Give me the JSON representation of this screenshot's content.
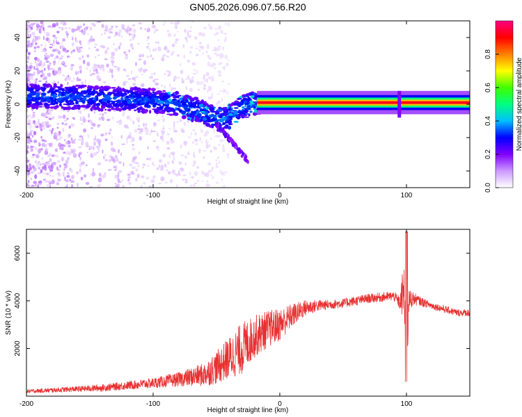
{
  "title": "GN05.2026.096.07.56.R20",
  "colorbar": {
    "label": "Normalized spectral amplitude",
    "ticks": [
      "0.0",
      "0.2",
      "0.4",
      "0.6",
      "0.8"
    ],
    "tick_values": [
      0.0,
      0.2,
      0.4,
      0.6,
      0.8
    ],
    "range": [
      0,
      1
    ],
    "stops": [
      "#ffffff",
      "#cc99ff",
      "#8000ff",
      "#0000ff",
      "#00c0ff",
      "#00ff80",
      "#40ff00",
      "#ffff00",
      "#ff8000",
      "#ff0000",
      "#ff0080"
    ]
  },
  "chart_data": [
    {
      "type": "heatmap",
      "title": "GN05.2026.096.07.56.R20",
      "xlabel": "Height of straight line (km)",
      "ylabel": "Frequency (Hz)",
      "xlim": [
        -200,
        150
      ],
      "ylim": [
        -50,
        50
      ],
      "xticks": [
        -200,
        -100,
        0,
        100
      ],
      "xtick_labels": [
        "-200",
        "-100",
        "0",
        "100"
      ],
      "yticks": [
        -40,
        -20,
        0,
        20,
        40
      ],
      "ytick_labels": [
        "-40",
        "-20",
        "0",
        "20",
        "40"
      ],
      "description_points": {
        "ridge_x": [
          -200,
          -150,
          -120,
          -100,
          -80,
          -60,
          -45,
          -30,
          -20,
          0,
          20,
          50,
          80,
          100,
          150
        ],
        "ridge_freq": [
          5,
          4,
          3,
          2,
          0,
          -5,
          -10,
          -2,
          1,
          1,
          1,
          1,
          2,
          1,
          1
        ]
      }
    },
    {
      "type": "line",
      "xlabel": "Height of straight line (km)",
      "ylabel": "SNR (10 * v/v)",
      "xlim": [
        -200,
        150
      ],
      "ylim": [
        0,
        7000
      ],
      "xticks": [
        -200,
        -100,
        0,
        100
      ],
      "xtick_labels": [
        "-200",
        "-100",
        "0",
        "100"
      ],
      "yticks": [
        2000,
        4000,
        6000
      ],
      "ytick_labels": [
        "2000",
        "4000",
        "6000"
      ],
      "series": [
        {
          "name": "SNR",
          "color": "#e83030",
          "x": [
            -200,
            -180,
            -160,
            -140,
            -120,
            -100,
            -80,
            -60,
            -50,
            -40,
            -30,
            -20,
            -10,
            0,
            10,
            20,
            30,
            40,
            50,
            60,
            70,
            80,
            90,
            95,
            98,
            100,
            102,
            105,
            110,
            120,
            130,
            140,
            150
          ],
          "y": [
            200,
            250,
            300,
            350,
            450,
            550,
            700,
            900,
            1200,
            1600,
            2000,
            2500,
            2800,
            3000,
            3400,
            3700,
            3800,
            3850,
            3900,
            4000,
            4100,
            4150,
            4200,
            3900,
            4500,
            1200,
            4000,
            4100,
            4000,
            3800,
            3650,
            3500,
            3500
          ],
          "noise": [
            80,
            100,
            120,
            150,
            180,
            220,
            300,
            500,
            700,
            900,
            1100,
            900,
            800,
            700,
            500,
            350,
            250,
            200,
            200,
            200,
            200,
            200,
            200,
            300,
            1500,
            800,
            500,
            300,
            200,
            150,
            150,
            150,
            150
          ]
        }
      ]
    }
  ]
}
